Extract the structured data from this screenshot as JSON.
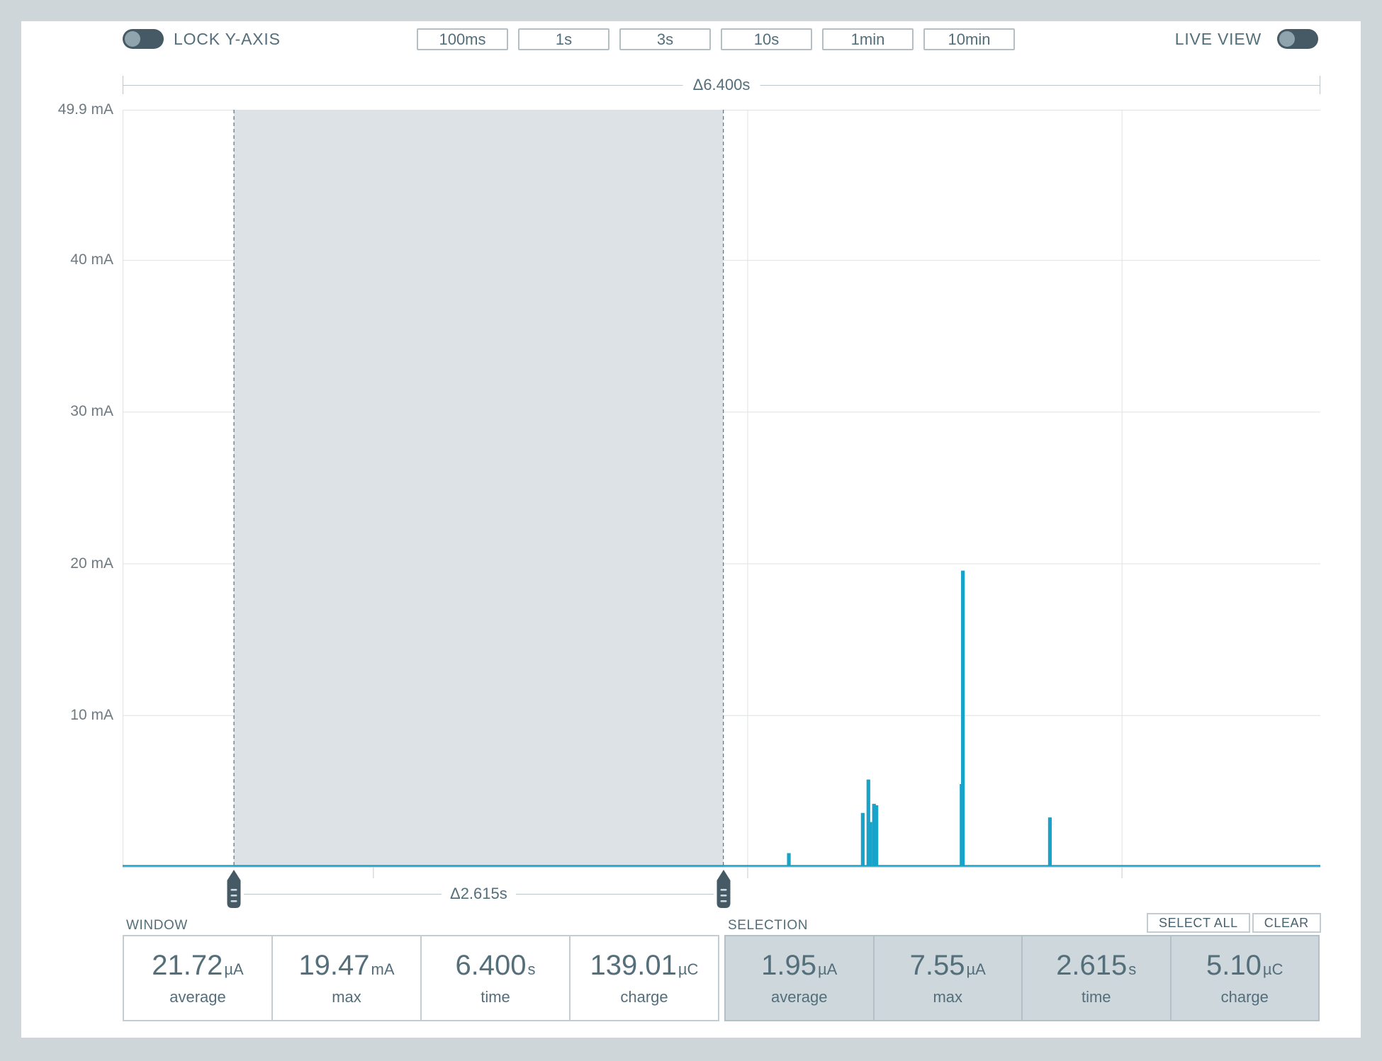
{
  "toolbar": {
    "lock_y_axis_label": "LOCK Y-AXIS",
    "window_buttons": [
      "100ms",
      "1s",
      "3s",
      "10s",
      "1min",
      "10min"
    ],
    "live_view_label": "LIVE VIEW"
  },
  "chart_data": {
    "type": "line",
    "x_range_s": [
      0,
      6.4
    ],
    "y_range_mA": [
      0,
      49.9
    ],
    "y_ticks": [
      {
        "mA": 49.9,
        "label": "49.9 mA"
      },
      {
        "mA": 40,
        "label": "40 mA"
      },
      {
        "mA": 30,
        "label": "30 mA"
      },
      {
        "mA": 20,
        "label": "20 mA"
      },
      {
        "mA": 10,
        "label": "10 mA"
      }
    ],
    "x_gridlines_s": [
      1.34,
      3.34,
      5.34
    ],
    "grid": true,
    "window_span_label": "Δ6.400s",
    "selection_span_label": "Δ2.615s",
    "selection_range_s": [
      0.595,
      3.21
    ],
    "series": [
      {
        "name": "current-trace",
        "color": "#17a3ca",
        "baseline_mA": 0.05,
        "spikes_t_s_mA": [
          [
            3.56,
            0.85
          ],
          [
            3.955,
            3.5
          ],
          [
            3.985,
            5.7
          ],
          [
            3.995,
            2.9
          ],
          [
            4.015,
            4.1
          ],
          [
            4.028,
            4.0
          ],
          [
            4.483,
            5.4
          ],
          [
            4.49,
            19.47
          ],
          [
            4.955,
            3.2
          ]
        ]
      }
    ]
  },
  "stats": {
    "window": {
      "label": "WINDOW",
      "items": [
        {
          "value": "21.72",
          "unit": "µA",
          "label": "average"
        },
        {
          "value": "19.47",
          "unit": "mA",
          "label": "max"
        },
        {
          "value": "6.400",
          "unit": "s",
          "label": "time"
        },
        {
          "value": "139.01",
          "unit": "µC",
          "label": "charge"
        }
      ]
    },
    "selection": {
      "label": "SELECTION",
      "select_all_label": "SELECT ALL",
      "clear_label": "CLEAR",
      "items": [
        {
          "value": "1.95",
          "unit": "µA",
          "label": "average"
        },
        {
          "value": "7.55",
          "unit": "µA",
          "label": "max"
        },
        {
          "value": "2.615",
          "unit": "s",
          "label": "time"
        },
        {
          "value": "5.10",
          "unit": "µC",
          "label": "charge"
        }
      ]
    }
  },
  "colors": {
    "accent_teal": "#17a3ca",
    "slate_text": "#546e7a",
    "toggle_track": "#455a64",
    "toggle_knob": "#90a4ae",
    "selection_fill": "#607d8b",
    "page_background": "#cfd6da"
  }
}
